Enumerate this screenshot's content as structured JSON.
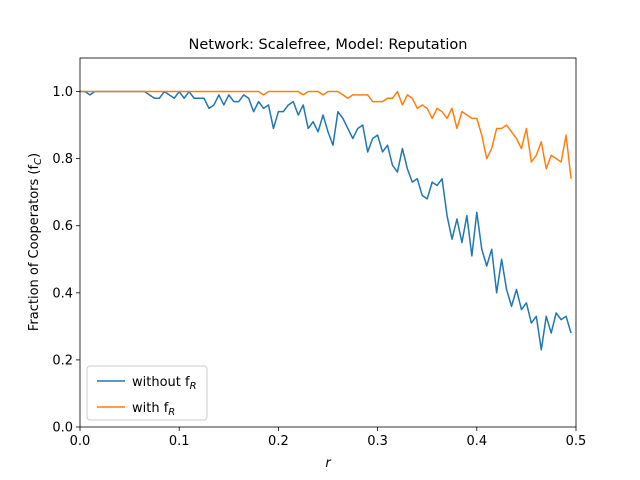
{
  "chart_data": {
    "type": "line",
    "title": "Network: Scalefree, Model: Reputation",
    "xlabel": "r",
    "ylabel": "Fraction of Cooperators (f",
    "ylabel_sub": "C",
    "ylabel_suffix": ")",
    "xlim": [
      0,
      0.5
    ],
    "ylim": [
      0,
      1.1
    ],
    "xticks": [
      0.0,
      0.1,
      0.2,
      0.3,
      0.4,
      0.5
    ],
    "xtick_labels": [
      "0.0",
      "0.1",
      "0.2",
      "0.3",
      "0.4",
      "0.5"
    ],
    "yticks": [
      0.0,
      0.2,
      0.4,
      0.6,
      0.8,
      1.0
    ],
    "ytick_labels": [
      "0.0",
      "0.2",
      "0.4",
      "0.6",
      "0.8",
      "1.0"
    ],
    "grid": false,
    "legend_position": "lower-left",
    "x": [
      0.0,
      0.005,
      0.01,
      0.015,
      0.02,
      0.025,
      0.03,
      0.035,
      0.04,
      0.045,
      0.05,
      0.055,
      0.06,
      0.065,
      0.07,
      0.075,
      0.08,
      0.085,
      0.09,
      0.095,
      0.1,
      0.105,
      0.11,
      0.115,
      0.12,
      0.125,
      0.13,
      0.135,
      0.14,
      0.145,
      0.15,
      0.155,
      0.16,
      0.165,
      0.17,
      0.175,
      0.18,
      0.185,
      0.19,
      0.195,
      0.2,
      0.205,
      0.21,
      0.215,
      0.22,
      0.225,
      0.23,
      0.235,
      0.24,
      0.245,
      0.25,
      0.255,
      0.26,
      0.265,
      0.27,
      0.275,
      0.28,
      0.285,
      0.29,
      0.295,
      0.3,
      0.305,
      0.31,
      0.315,
      0.32,
      0.325,
      0.33,
      0.335,
      0.34,
      0.345,
      0.35,
      0.355,
      0.36,
      0.365,
      0.37,
      0.375,
      0.38,
      0.385,
      0.39,
      0.395,
      0.4,
      0.405,
      0.41,
      0.415,
      0.42,
      0.425,
      0.43,
      0.435,
      0.44,
      0.445,
      0.45,
      0.455,
      0.46,
      0.465,
      0.47,
      0.475,
      0.48,
      0.485,
      0.49,
      0.495
    ],
    "series": [
      {
        "name": "without f",
        "name_sub": "R",
        "color": "#1f77b4",
        "values": [
          1.0,
          1.0,
          0.99,
          1.0,
          1.0,
          1.0,
          1.0,
          1.0,
          1.0,
          1.0,
          1.0,
          1.0,
          1.0,
          1.0,
          0.99,
          0.98,
          0.98,
          1.0,
          0.99,
          0.98,
          1.0,
          0.98,
          1.0,
          0.98,
          0.98,
          0.98,
          0.95,
          0.96,
          0.99,
          0.96,
          0.99,
          0.97,
          0.97,
          0.99,
          0.98,
          0.94,
          0.97,
          0.95,
          0.96,
          0.89,
          0.94,
          0.94,
          0.96,
          0.97,
          0.93,
          0.96,
          0.89,
          0.91,
          0.88,
          0.93,
          0.88,
          0.84,
          0.94,
          0.92,
          0.89,
          0.86,
          0.89,
          0.9,
          0.82,
          0.86,
          0.87,
          0.82,
          0.84,
          0.78,
          0.76,
          0.83,
          0.77,
          0.73,
          0.74,
          0.69,
          0.68,
          0.73,
          0.72,
          0.74,
          0.63,
          0.56,
          0.62,
          0.55,
          0.63,
          0.51,
          0.64,
          0.53,
          0.48,
          0.53,
          0.4,
          0.5,
          0.41,
          0.36,
          0.41,
          0.35,
          0.37,
          0.31,
          0.33,
          0.23,
          0.33,
          0.28,
          0.34,
          0.32,
          0.33,
          0.28
        ]
      },
      {
        "name": "with f",
        "name_sub": "R",
        "color": "#ff7f0e",
        "values": [
          1.0,
          1.0,
          1.0,
          1.0,
          1.0,
          1.0,
          1.0,
          1.0,
          1.0,
          1.0,
          1.0,
          1.0,
          1.0,
          1.0,
          1.0,
          1.0,
          1.0,
          1.0,
          1.0,
          1.0,
          1.0,
          1.0,
          1.0,
          1.0,
          1.0,
          1.0,
          1.0,
          1.0,
          1.0,
          1.0,
          1.0,
          1.0,
          1.0,
          1.0,
          1.0,
          1.0,
          1.0,
          0.99,
          1.0,
          1.0,
          1.0,
          1.0,
          1.0,
          1.0,
          1.0,
          0.99,
          1.0,
          1.0,
          1.0,
          0.99,
          1.0,
          1.0,
          1.0,
          0.99,
          0.98,
          0.99,
          0.99,
          0.99,
          0.99,
          0.97,
          0.97,
          0.97,
          0.98,
          0.98,
          1.0,
          0.96,
          0.99,
          0.98,
          0.95,
          0.96,
          0.95,
          0.92,
          0.95,
          0.94,
          0.92,
          0.95,
          0.89,
          0.94,
          0.93,
          0.92,
          0.92,
          0.87,
          0.8,
          0.83,
          0.89,
          0.89,
          0.9,
          0.88,
          0.86,
          0.83,
          0.89,
          0.79,
          0.81,
          0.85,
          0.77,
          0.81,
          0.8,
          0.79,
          0.87,
          0.74
        ]
      }
    ]
  }
}
